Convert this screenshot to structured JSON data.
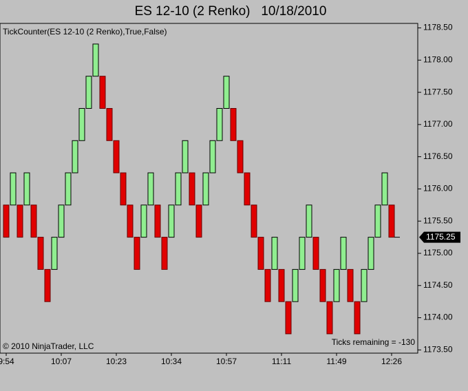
{
  "chart_data": {
    "type": "renko",
    "title": "ES 12-10 (2 Renko)   10/18/2010",
    "indicator": "TickCounter(ES 12-10 (2 Renko),True,False)",
    "copyright": "© 2010 NinjaTrader, LLC",
    "status": "Ticks remaining = -130",
    "up_color": "#90ee90",
    "down_color": "#e00000",
    "categories": [
      "9:54",
      null,
      null,
      null,
      null,
      null,
      null,
      null,
      "10:07",
      null,
      null,
      null,
      null,
      null,
      null,
      null,
      "10:23",
      null,
      null,
      null,
      null,
      null,
      null,
      null,
      "10:34",
      null,
      null,
      null,
      null,
      null,
      null,
      null,
      "10:57",
      null,
      null,
      null,
      null,
      null,
      null,
      null,
      "11:11",
      null,
      null,
      null,
      null,
      null,
      null,
      null,
      "11:49",
      null,
      null,
      null,
      null,
      null,
      null,
      null,
      "12:26"
    ],
    "open": [
      1175.75,
      1175.75,
      1175.75,
      1175.75,
      1175.75,
      1175.25,
      1174.75,
      1174.75,
      1175.25,
      1175.75,
      1176.25,
      1176.75,
      1177.25,
      1177.75,
      1177.75,
      1177.25,
      1176.75,
      1176.25,
      1175.75,
      1175.25,
      1175.25,
      1175.75,
      1175.75,
      1175.25,
      1175.25,
      1175.75,
      1176.25,
      1176.25,
      1175.75,
      1175.75,
      1176.25,
      1176.75,
      1177.25,
      1177.25,
      1176.75,
      1176.25,
      1175.75,
      1175.25,
      1174.75,
      1174.75,
      1174.75,
      1174.25,
      1174.25,
      1174.75,
      1175.25,
      1175.25,
      1174.75,
      1174.25,
      1174.25,
      1174.75,
      1174.75,
      1174.25,
      1174.25,
      1174.75,
      1175.25,
      1175.75,
      1175.75
    ],
    "close": [
      1175.25,
      1176.25,
      1175.25,
      1176.25,
      1175.25,
      1174.75,
      1174.25,
      1175.25,
      1175.75,
      1176.25,
      1176.75,
      1177.25,
      1177.75,
      1178.25,
      1177.25,
      1176.75,
      1176.25,
      1175.75,
      1175.25,
      1174.75,
      1175.75,
      1176.25,
      1175.25,
      1174.75,
      1175.75,
      1176.25,
      1176.75,
      1175.75,
      1175.25,
      1176.25,
      1176.75,
      1177.25,
      1177.75,
      1176.75,
      1176.25,
      1175.75,
      1175.25,
      1174.75,
      1174.25,
      1175.25,
      1174.25,
      1173.75,
      1174.75,
      1175.25,
      1175.75,
      1174.75,
      1174.25,
      1173.75,
      1174.75,
      1175.25,
      1174.25,
      1173.75,
      1174.75,
      1175.25,
      1175.75,
      1176.25,
      1175.25
    ],
    "last_price": 1175.25,
    "ylim": [
      1173.45,
      1178.57
    ],
    "yticks": [
      {
        "value": 1173.5,
        "label": "1173.50"
      },
      {
        "value": 1174,
        "label": "1174.00"
      },
      {
        "value": 1174.5,
        "label": "1174.50"
      },
      {
        "value": 1175,
        "label": "1175.00"
      },
      {
        "value": 1175.5,
        "label": "1175.50"
      },
      {
        "value": 1176,
        "label": "1176.00"
      },
      {
        "value": 1176.5,
        "label": "1176.50"
      },
      {
        "value": 1177,
        "label": "1177.00"
      },
      {
        "value": 1177.5,
        "label": "1177.50"
      },
      {
        "value": 1178,
        "label": "1178.00"
      },
      {
        "value": 1178.5,
        "label": "1178.50"
      }
    ]
  }
}
